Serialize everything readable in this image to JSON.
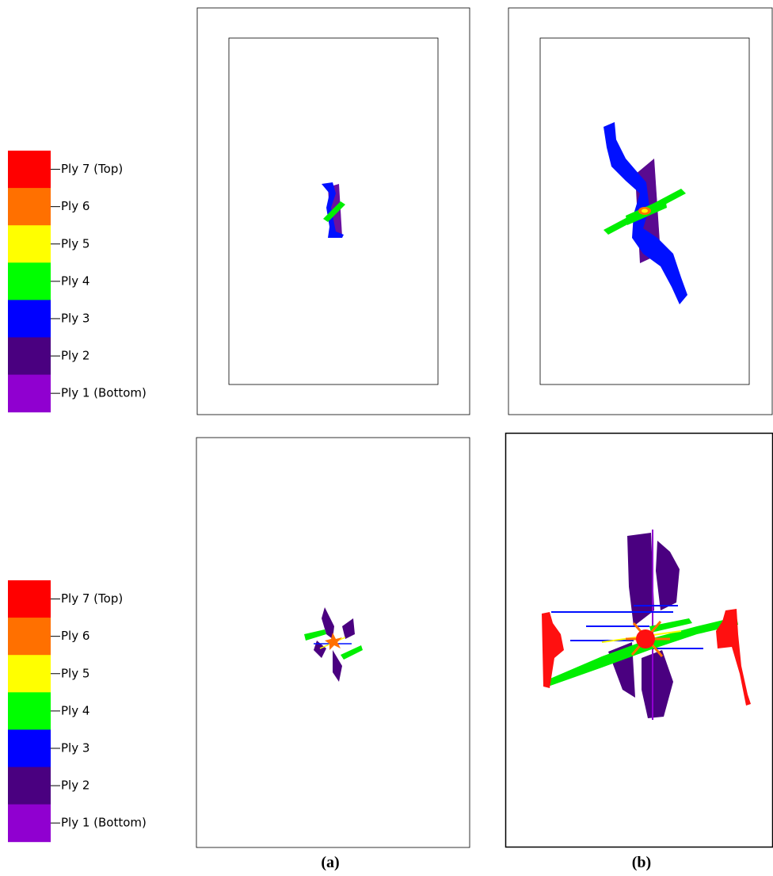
{
  "legends": [
    {
      "items": [
        {
          "label": "Ply 7 (Top)",
          "color": "#ff0000"
        },
        {
          "label": "Ply 6",
          "color": "#ff7000"
        },
        {
          "label": "Ply 5",
          "color": "#ffff00"
        },
        {
          "label": "Ply 4",
          "color": "#00ff00"
        },
        {
          "label": "Ply 3",
          "color": "#0000ff"
        },
        {
          "label": "Ply 2",
          "color": "#4a0080"
        },
        {
          "label": "Ply 1 (Bottom)",
          "color": "#9000d0"
        }
      ]
    },
    {
      "items": [
        {
          "label": "Ply 7 (Top)",
          "color": "#ff0000"
        },
        {
          "label": "Ply 6",
          "color": "#ff7000"
        },
        {
          "label": "Ply 5",
          "color": "#ffff00"
        },
        {
          "label": "Ply 4",
          "color": "#00ff00"
        },
        {
          "label": "Ply 3",
          "color": "#0000ff"
        },
        {
          "label": "Ply 2",
          "color": "#4a0080"
        },
        {
          "label": "Ply 1 (Bottom)",
          "color": "#9000d0"
        }
      ]
    }
  ],
  "captions": [
    "(a)",
    "(b)"
  ]
}
